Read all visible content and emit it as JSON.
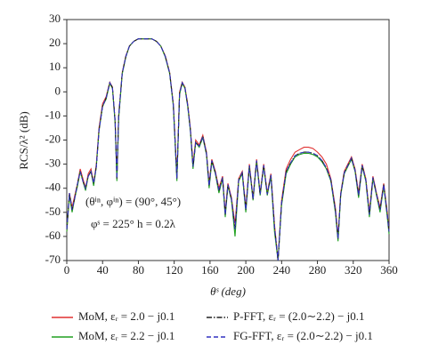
{
  "chart_data": {
    "type": "line",
    "xlabel": "θˢ (deg)",
    "ylabel": "RCS/λ² (dB)",
    "annotations": [
      "(θⁱⁿ, φⁱⁿ) = (90°, 45°)",
      "φˢ = 225°  h = 0.2λ"
    ],
    "x": [
      0,
      3,
      6,
      9,
      12,
      15,
      18,
      21,
      24,
      27,
      30,
      33,
      36,
      40,
      44,
      48,
      51,
      54,
      56,
      58,
      62,
      66,
      70,
      75,
      80,
      85,
      90,
      95,
      100,
      105,
      110,
      115,
      119,
      123,
      126,
      129,
      132,
      135,
      138,
      141,
      144,
      148,
      152,
      156,
      159,
      162,
      166,
      170,
      174,
      177,
      180,
      184,
      188,
      192,
      196,
      200,
      204,
      208,
      212,
      216,
      220,
      224,
      228,
      232,
      236,
      240,
      245,
      250,
      255,
      260,
      265,
      270,
      275,
      280,
      285,
      290,
      295,
      300,
      303,
      306,
      310,
      314,
      318,
      322,
      326,
      330,
      334,
      338,
      342,
      346,
      350,
      354,
      358,
      360
    ],
    "xlim": [
      0,
      360
    ],
    "xticks": [
      0,
      40,
      80,
      120,
      160,
      200,
      240,
      280,
      320,
      360
    ],
    "ylim": [
      -70,
      30
    ],
    "yticks": [
      -70,
      -60,
      -50,
      -40,
      -30,
      -20,
      -10,
      0,
      10,
      20,
      30
    ],
    "series": [
      {
        "name": "MoM, εᵣ = 2.0 − j0.1",
        "color": "#e03030",
        "dash": "solid",
        "values": [
          -58,
          -42,
          -48,
          -43,
          -38,
          -32,
          -36,
          -40,
          -34,
          -32,
          -38,
          -30,
          -15,
          -5,
          -2,
          4,
          2,
          -12,
          -35,
          -10,
          8,
          15,
          19,
          21,
          22,
          22,
          22,
          22,
          21,
          19,
          15,
          8,
          -5,
          -35,
          0,
          4,
          2,
          -5,
          -15,
          -30,
          -20,
          -22,
          -18,
          -25,
          -38,
          -28,
          -33,
          -40,
          -35,
          -50,
          -38,
          -44,
          -55,
          -36,
          -33,
          -48,
          -30,
          -44,
          -28,
          -42,
          -30,
          -42,
          -34,
          -55,
          -70,
          -45,
          -32,
          -28,
          -25,
          -24,
          -23,
          -23,
          -23.5,
          -25,
          -27,
          -30,
          -36,
          -48,
          -60,
          -42,
          -33,
          -30,
          -27,
          -32,
          -42,
          -30,
          -36,
          -50,
          -35,
          -42,
          -48,
          -38,
          -50,
          -58
        ]
      },
      {
        "name": "MoM, εᵣ = 2.2 − j0.1",
        "color": "#20a020",
        "dash": "solid",
        "values": [
          -58,
          -43,
          -50,
          -44,
          -39,
          -33,
          -37,
          -41,
          -35,
          -33,
          -39,
          -31,
          -16,
          -6,
          -3,
          3.5,
          1.5,
          -13,
          -37,
          -11,
          7.5,
          14.5,
          19,
          21,
          22,
          22,
          22,
          22,
          21,
          19,
          14.5,
          7.5,
          -6,
          -37,
          -1,
          3.5,
          1.5,
          -6,
          -16,
          -32,
          -21,
          -23,
          -19,
          -26,
          -40,
          -29,
          -34,
          -42,
          -36,
          -52,
          -39,
          -45,
          -60,
          -37,
          -34,
          -50,
          -31,
          -45,
          -29,
          -43,
          -31,
          -43,
          -35,
          -58,
          -70,
          -47,
          -34,
          -30,
          -27,
          -26,
          -25.5,
          -25.5,
          -26,
          -27,
          -29,
          -32,
          -37,
          -50,
          -62,
          -43,
          -34,
          -31,
          -28,
          -33,
          -44,
          -31,
          -37,
          -52,
          -36,
          -43,
          -50,
          -39,
          -52,
          -59
        ]
      },
      {
        "name": "P-FFT, εᵣ = (2.0∼2.2) − j0.1",
        "color": "#202020",
        "dash": "dashdot",
        "values": [
          -57,
          -42,
          -49,
          -44,
          -38,
          -33,
          -37,
          -40,
          -35,
          -33,
          -38,
          -31,
          -16,
          -6,
          -2.5,
          3.8,
          1.8,
          -12,
          -36,
          -10,
          7.8,
          14.8,
          19,
          21,
          22,
          22,
          22,
          22,
          21,
          19,
          14.8,
          7.8,
          -5.5,
          -36,
          -0.5,
          3.8,
          1.8,
          -5.5,
          -15.5,
          -31,
          -21,
          -22.5,
          -18.5,
          -25.5,
          -39,
          -28.5,
          -33.5,
          -41,
          -35.5,
          -51,
          -38.5,
          -44.5,
          -57,
          -36.5,
          -33.5,
          -49,
          -30.5,
          -44.5,
          -28.5,
          -42.5,
          -30.5,
          -42.5,
          -34.5,
          -56,
          -70,
          -46,
          -33,
          -29.5,
          -26.5,
          -25.5,
          -25,
          -25,
          -25.5,
          -26.5,
          -28.5,
          -31.5,
          -36.5,
          -49,
          -61,
          -42.5,
          -33.5,
          -30.5,
          -27.5,
          -32.5,
          -43,
          -30.5,
          -36.5,
          -51,
          -35.5,
          -42.5,
          -49,
          -38.5,
          -51,
          -58
        ]
      },
      {
        "name": "FG-FFT, εᵣ = (2.0∼2.2) − j0.1",
        "color": "#3030c0",
        "dash": "dashed",
        "values": [
          -57,
          -42,
          -49,
          -44,
          -38,
          -33,
          -37,
          -40,
          -35,
          -33,
          -38,
          -31,
          -16,
          -6,
          -2.5,
          3.8,
          1.8,
          -12,
          -36,
          -10,
          7.8,
          14.8,
          19,
          21,
          22,
          22,
          22,
          22,
          21,
          19,
          14.8,
          7.8,
          -5.5,
          -36,
          -0.5,
          3.8,
          1.8,
          -5.5,
          -15.5,
          -31,
          -21,
          -22.5,
          -18.5,
          -25.5,
          -39,
          -28.5,
          -33.5,
          -41,
          -35.5,
          -51,
          -38.5,
          -44.5,
          -57,
          -36.5,
          -33.5,
          -49,
          -30.5,
          -44.5,
          -28.5,
          -42.5,
          -30.5,
          -42.5,
          -34.5,
          -56,
          -70,
          -46,
          -33,
          -29.5,
          -26.5,
          -25.5,
          -25,
          -25,
          -25.5,
          -26.5,
          -28.5,
          -31.5,
          -36.5,
          -49,
          -61,
          -42.5,
          -33.5,
          -30.5,
          -27.5,
          -32.5,
          -43,
          -30.5,
          -36.5,
          -51,
          -35.5,
          -42.5,
          -49,
          -38.5,
          -51,
          -58
        ]
      }
    ]
  }
}
